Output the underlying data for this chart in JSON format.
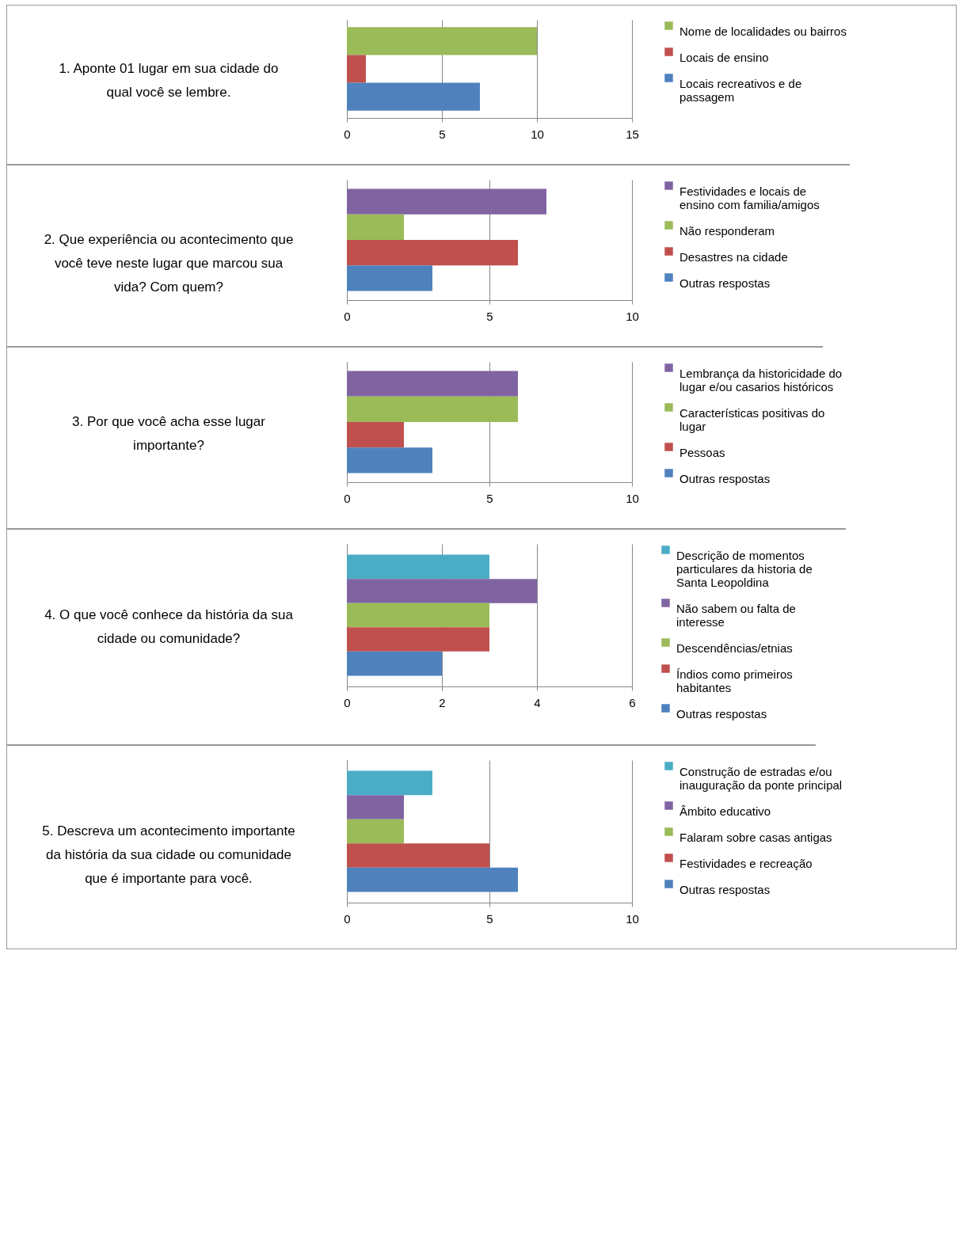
{
  "chart_data": [
    {
      "type": "bar",
      "orientation": "horizontal",
      "title": "1.  Aponte 01 lugar em sua cidade do qual você se lembre.",
      "categories": [
        null
      ],
      "xlim": [
        0,
        15
      ],
      "xticks": [
        0,
        5,
        10,
        15
      ],
      "grid": "x",
      "legend": "right",
      "series": [
        {
          "name": "Nome de localidades ou bairros",
          "color": "#9bbb59",
          "values": [
            10
          ]
        },
        {
          "name": "Locais de ensino",
          "color": "#c0504d",
          "values": [
            1
          ]
        },
        {
          "name": "Locais recreativos e de passagem",
          "color": "#4f81bd",
          "values": [
            7
          ]
        }
      ]
    },
    {
      "type": "bar",
      "orientation": "horizontal",
      "title": "2. Que experiência ou acontecimento que você teve neste lugar que marcou sua vida? Com quem?",
      "categories": [
        null
      ],
      "xlim": [
        0,
        10
      ],
      "xticks": [
        0,
        5,
        10
      ],
      "grid": "x",
      "legend": "right",
      "series": [
        {
          "name": "Festividades e locais de ensino com familia/amigos",
          "color": "#8064a2",
          "values": [
            7
          ]
        },
        {
          "name": "Não responderam",
          "color": "#9bbb59",
          "values": [
            2
          ]
        },
        {
          "name": "Desastres na cidade",
          "color": "#c0504d",
          "values": [
            6
          ]
        },
        {
          "name": "Outras respostas",
          "color": "#4f81bd",
          "values": [
            3
          ]
        }
      ]
    },
    {
      "type": "bar",
      "orientation": "horizontal",
      "title": "3. Por que você acha esse lugar importante?",
      "categories": [
        null
      ],
      "xlim": [
        0,
        10
      ],
      "xticks": [
        0,
        5,
        10
      ],
      "grid": "x",
      "legend": "right",
      "series": [
        {
          "name": "Lembrança da historicidade do lugar e/ou casarios históricos",
          "color": "#8064a2",
          "values": [
            6
          ]
        },
        {
          "name": "Características positivas do lugar",
          "color": "#9bbb59",
          "values": [
            6
          ]
        },
        {
          "name": "Pessoas",
          "color": "#c0504d",
          "values": [
            2
          ]
        },
        {
          "name": "Outras respostas",
          "color": "#4f81bd",
          "values": [
            3
          ]
        }
      ]
    },
    {
      "type": "bar",
      "orientation": "horizontal",
      "title": "4. O que você conhece da história da sua cidade ou comunidade?",
      "categories": [
        null
      ],
      "xlim": [
        0,
        6
      ],
      "xticks": [
        0,
        2,
        4,
        6
      ],
      "grid": "x",
      "legend": "right",
      "series": [
        {
          "name": "Descrição de momentos particulares da historia de Santa Leopoldina",
          "color": "#4bacc6",
          "values": [
            3
          ]
        },
        {
          "name": "Não sabem ou falta de interesse",
          "color": "#8064a2",
          "values": [
            4
          ]
        },
        {
          "name": "Descendências/etnias",
          "color": "#9bbb59",
          "values": [
            3
          ]
        },
        {
          "name": "Índios como primeiros habitantes",
          "color": "#c0504d",
          "values": [
            3
          ]
        },
        {
          "name": "Outras respostas",
          "color": "#4f81bd",
          "values": [
            2
          ]
        }
      ]
    },
    {
      "type": "bar",
      "orientation": "horizontal",
      "title": "5. Descreva um acontecimento importante da história da sua cidade ou comunidade que é importante para você.",
      "categories": [
        null
      ],
      "xlim": [
        0,
        10
      ],
      "xticks": [
        0,
        5,
        10
      ],
      "grid": "x",
      "legend": "right",
      "series": [
        {
          "name": "Construção de estradas e/ou inauguração da ponte principal",
          "color": "#4bacc6",
          "values": [
            3
          ]
        },
        {
          "name": "Âmbito educativo",
          "color": "#8064a2",
          "values": [
            2
          ]
        },
        {
          "name": "Falaram sobre casas antigas",
          "color": "#9bbb59",
          "values": [
            2
          ]
        },
        {
          "name": "Festividades e recreação",
          "color": "#c0504d",
          "values": [
            5
          ]
        },
        {
          "name": "Outras respostas",
          "color": "#4f81bd",
          "values": [
            6
          ]
        }
      ]
    }
  ]
}
